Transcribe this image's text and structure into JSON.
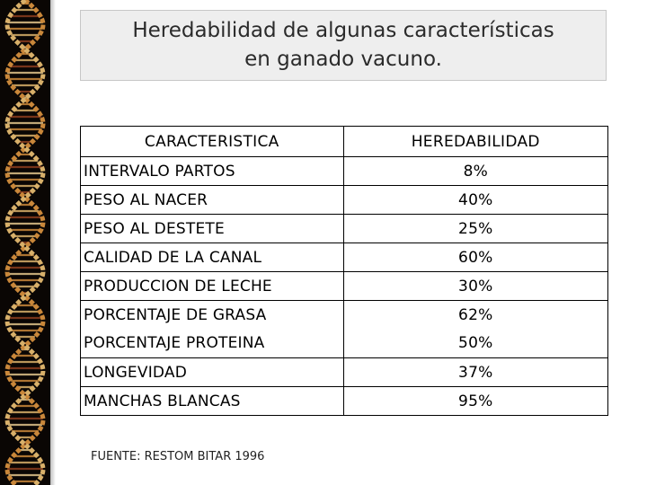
{
  "slide": {
    "title_line1": "Heredabilidad de algunas características",
    "title_line2": "en ganado vacuno."
  },
  "table": {
    "headers": [
      "CARACTERISTICA",
      "HEREDABILIDAD"
    ],
    "rows": [
      {
        "characteristic": "INTERVALO PARTOS",
        "heritability": "8%"
      },
      {
        "characteristic": "PESO AL NACER",
        "heritability": "40%"
      },
      {
        "characteristic": "PESO AL DESTETE",
        "heritability": "25%"
      },
      {
        "characteristic": "CALIDAD DE LA CANAL",
        "heritability": "60%"
      },
      {
        "characteristic": "PRODUCCION DE LECHE",
        "heritability": "30%"
      },
      {
        "characteristic": "PORCENTAJE DE GRASA",
        "heritability": "62%"
      },
      {
        "characteristic": "PORCENTAJE PROTEINA",
        "heritability": "50%"
      },
      {
        "characteristic": "LONGEVIDAD",
        "heritability": "37%"
      },
      {
        "characteristic": "MANCHAS BLANCAS",
        "heritability": "95%"
      }
    ]
  },
  "footer": {
    "source": "FUENTE: RESTOM BITAR 1996"
  },
  "decoration": {
    "left_strip": "dna-helix-image",
    "colors": {
      "strip_background": "#0a0604",
      "title_box_background": "#eeeeee",
      "helix_colors": [
        "#c9873a",
        "#d8b06a",
        "#8a3d1e",
        "#e0c48a"
      ]
    }
  }
}
